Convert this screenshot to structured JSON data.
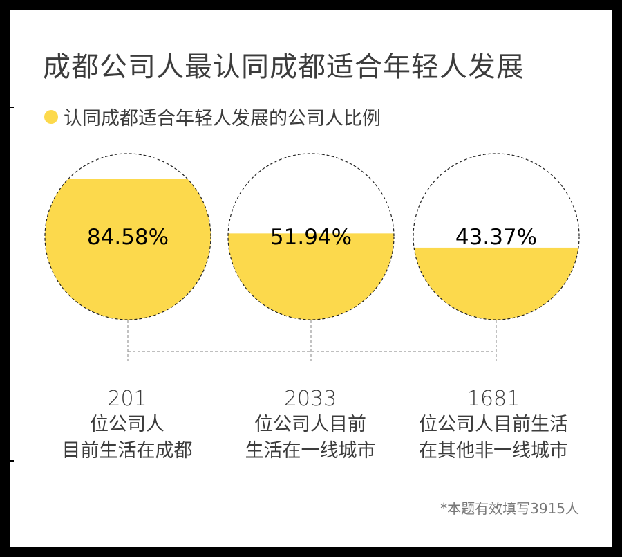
{
  "title": "成都公司人最认同成都适合年轻人发展",
  "legend": {
    "label": "认同成都适合年轻人发展的公司人比例",
    "color": "#fcd94c"
  },
  "chart_data": {
    "type": "liquid-fill",
    "unit": "%",
    "fill_color": "#fcd94c",
    "items": [
      {
        "value": 84.58,
        "label": "84.58%",
        "count": "201",
        "line1": "位公司人",
        "line2": "目前生活在成都"
      },
      {
        "value": 51.94,
        "label": "51.94%",
        "count": "2033",
        "line1": "位公司人目前",
        "line2": "生活在一线城市"
      },
      {
        "value": 43.37,
        "label": "43.37%",
        "count": "1681",
        "line1": "位公司人目前生活",
        "line2": "在其他非一线城市"
      }
    ]
  },
  "footnote": "*本题有效填写3915人"
}
